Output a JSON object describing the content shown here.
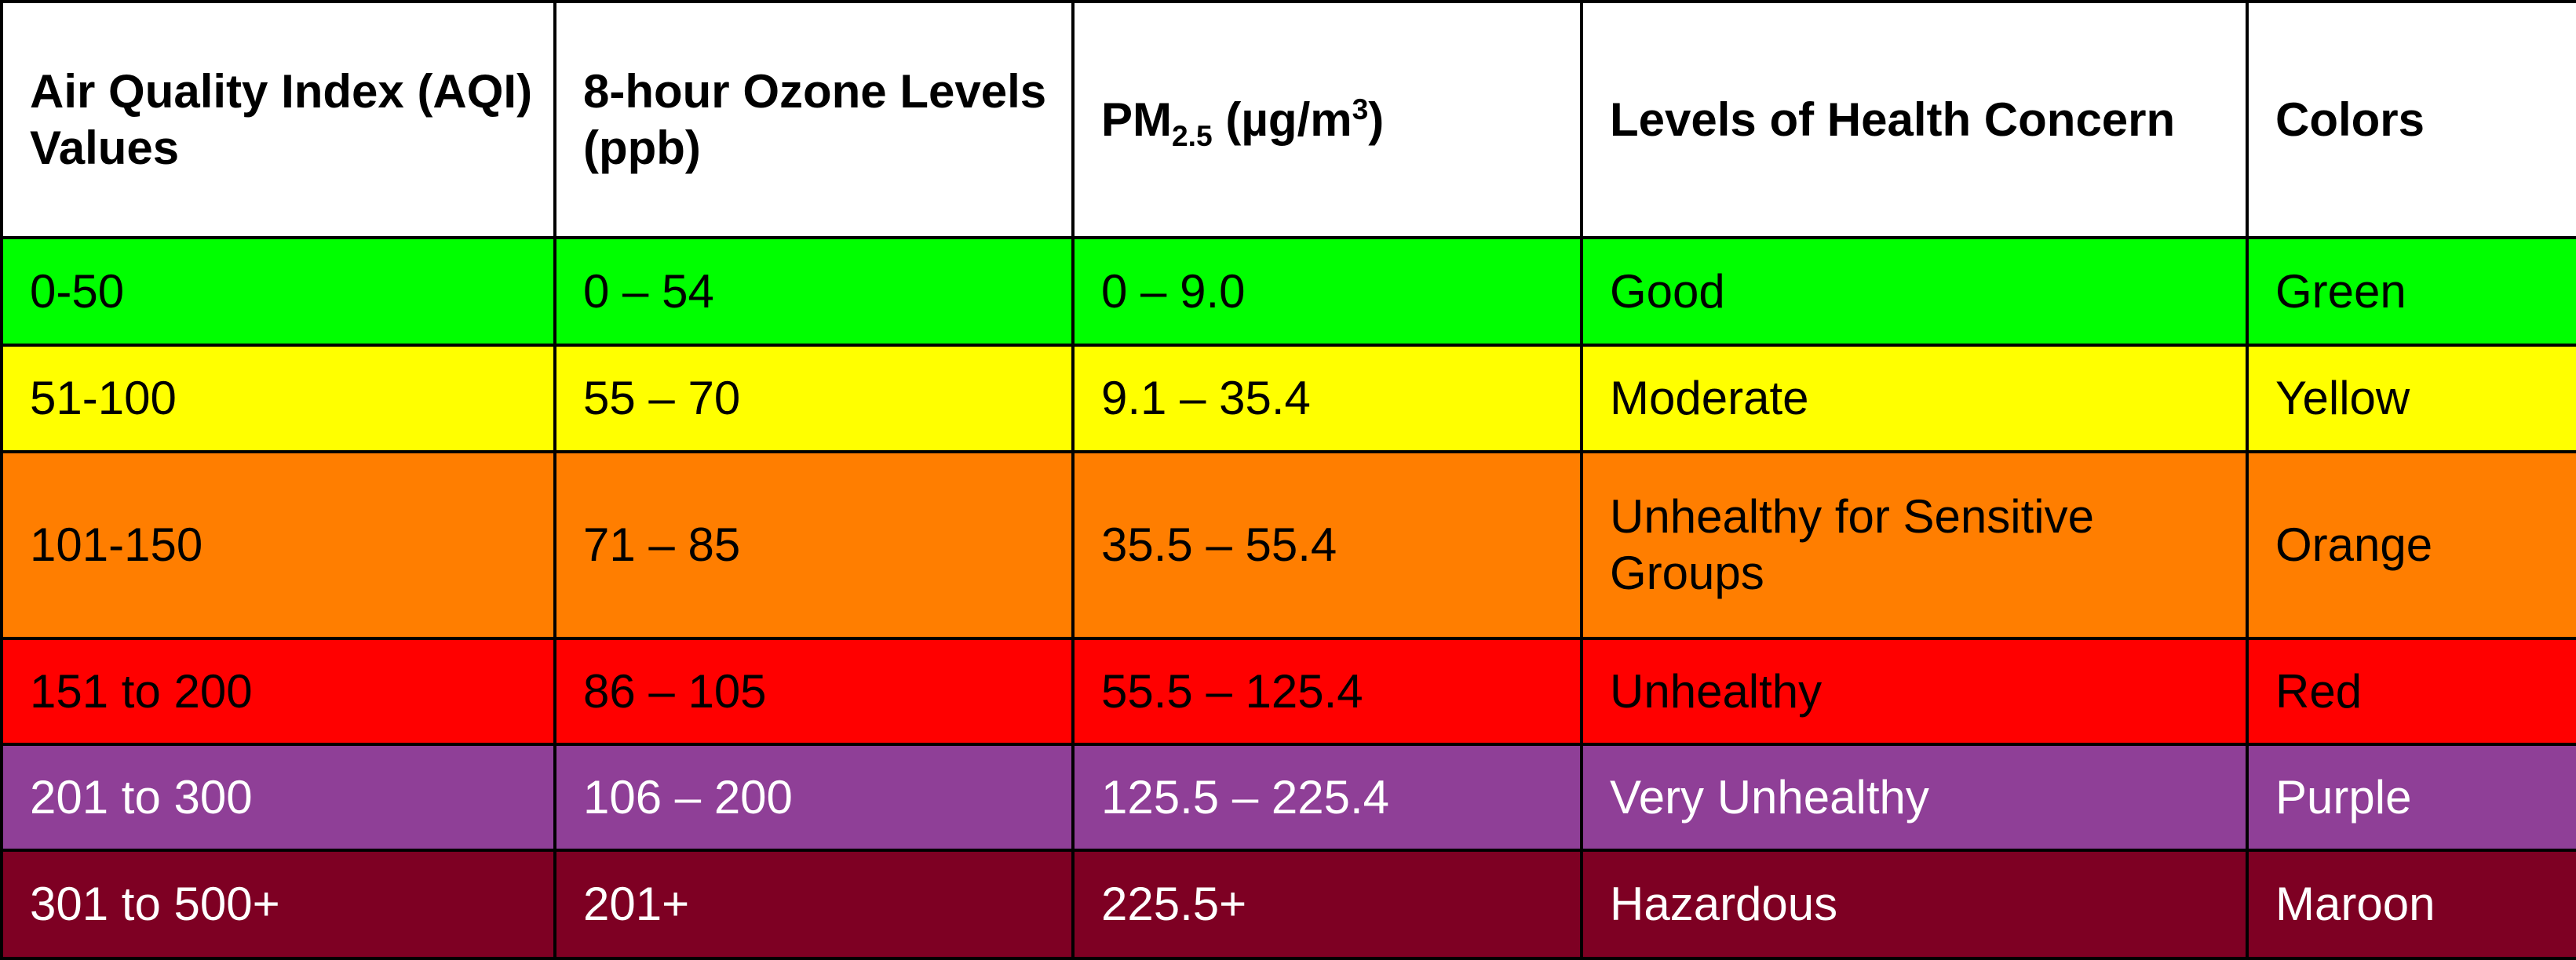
{
  "table": {
    "header": [
      "Air Quality Index (AQI) Values",
      "8-hour Ozone Levels (ppb)",
      [
        "PM",
        "2.5",
        " (µg/m",
        "3",
        ")"
      ],
      "Levels of Health Concern",
      "Colors"
    ],
    "rows": [
      {
        "cells": [
          "0-50",
          "0 – 54",
          "0 – 9.0",
          "Good",
          "Green"
        ],
        "background": "#00ff00",
        "text_color": "#000000"
      },
      {
        "cells": [
          "51-100",
          "55 – 70",
          "9.1 – 35.4",
          "Moderate",
          "Yellow"
        ],
        "background": "#ffff00",
        "text_color": "#000000"
      },
      {
        "cells": [
          "101-150",
          "71 – 85",
          "35.5 – 55.4",
          "Unhealthy for Sensitive Groups",
          "Orange"
        ],
        "background": "#ff7e00",
        "text_color": "#000000"
      },
      {
        "cells": [
          "151 to 200",
          "86 – 105",
          "55.5 – 125.4",
          "Unhealthy",
          "Red"
        ],
        "background": "#ff0000",
        "text_color": "#000000"
      },
      {
        "cells": [
          "201 to 300",
          "106 – 200",
          "125.5 – 225.4",
          "Very Unhealthy",
          "Purple"
        ],
        "background": "#8f3f97",
        "text_color": "#ffffff"
      },
      {
        "cells": [
          "301 to 500+",
          "201+",
          "225.5+",
          "Hazardous",
          "Maroon"
        ],
        "background": "#7e0023",
        "text_color": "#ffffff"
      }
    ]
  }
}
